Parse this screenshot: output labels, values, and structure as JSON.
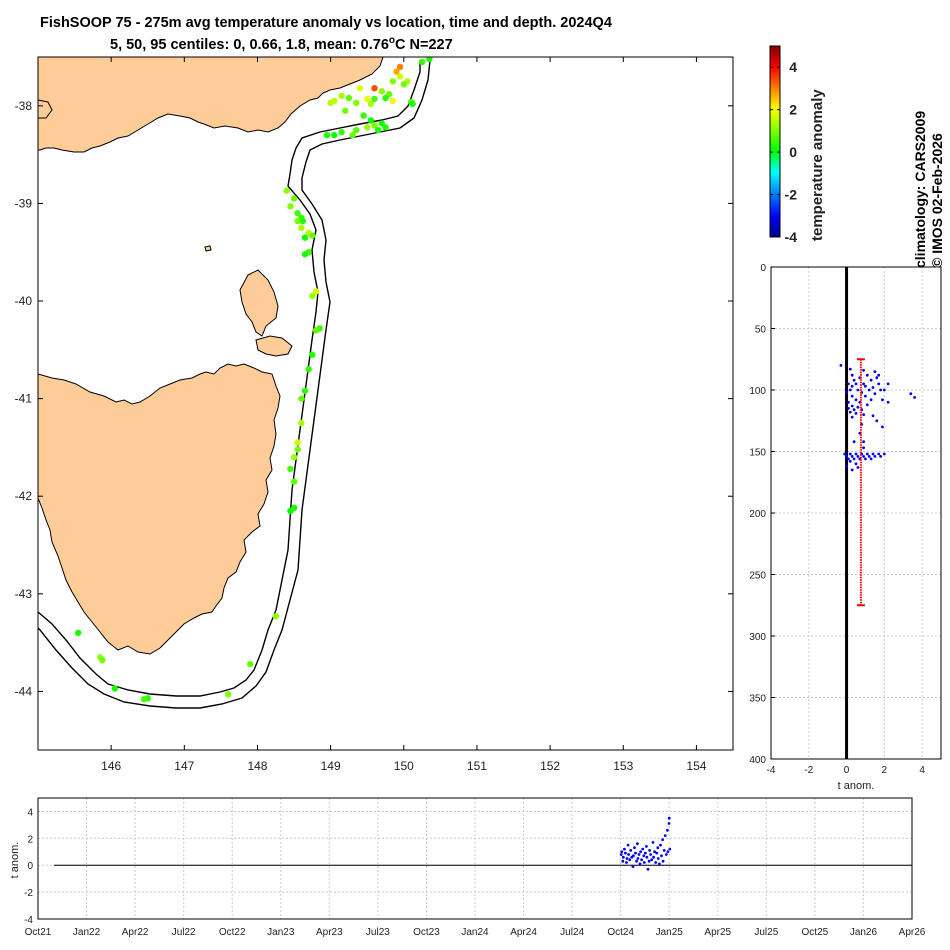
{
  "title_line1": "FishSOOP 75 - 275m avg temperature anomaly vs location, time and depth. 2024Q4",
  "title_line2": "5, 50, 95 centiles: 0, 0.66, 1.8, mean: 0.76",
  "title_unit": "o",
  "title_unit_tail": "C N=227",
  "credit_line1": "climatology: CARS2009",
  "credit_line2": "© IMOS 02-Feb-2026",
  "colors": {
    "land": "#fdcc99",
    "coast": "#000000",
    "depth_points": "#0000ff",
    "error_bar": "#ff0000",
    "zero_line": "#000000",
    "grid": "#cccccc",
    "colormap_jet": [
      "#00008f",
      "#0000ff",
      "#0080ff",
      "#00ffff",
      "#00ff00",
      "#80ff00",
      "#ffff00",
      "#ff8000",
      "#ff0000",
      "#800000"
    ]
  },
  "chart_data": [
    {
      "type": "scatter",
      "name": "map",
      "xlim": [
        145,
        154.5
      ],
      "ylim": [
        -44.6,
        -37.5
      ],
      "xticks": [
        "146",
        "147",
        "148",
        "149",
        "150",
        "151",
        "152",
        "153",
        "154"
      ],
      "yticks": [
        "-38",
        "-39",
        "-40",
        "-41",
        "-42",
        "-43",
        "-44"
      ],
      "colorbar": {
        "label": "temperature anomaly",
        "clim": [
          -4,
          5
        ],
        "ticks": [
          "4",
          "2",
          "0",
          "-2",
          "-4"
        ]
      },
      "points": [
        [
          150.35,
          -37.52,
          0.2
        ],
        [
          150.25,
          -37.55,
          0.4
        ],
        [
          149.95,
          -37.6,
          3.0
        ],
        [
          149.9,
          -37.65,
          2.7
        ],
        [
          149.95,
          -37.7,
          1.6
        ],
        [
          150.05,
          -37.75,
          1.3
        ],
        [
          149.85,
          -37.75,
          1.0
        ],
        [
          150.0,
          -37.78,
          0.9
        ],
        [
          149.6,
          -37.82,
          3.4
        ],
        [
          149.4,
          -37.82,
          1.7
        ],
        [
          149.7,
          -37.85,
          1.1
        ],
        [
          149.8,
          -37.88,
          0.8
        ],
        [
          149.15,
          -37.9,
          1.3
        ],
        [
          149.25,
          -37.92,
          0.7
        ],
        [
          149.5,
          -37.93,
          1.8
        ],
        [
          149.6,
          -37.93,
          0.5
        ],
        [
          149.75,
          -37.92,
          0.3
        ],
        [
          149.85,
          -37.95,
          1.9
        ],
        [
          149.0,
          -37.97,
          1.4
        ],
        [
          149.05,
          -37.95,
          1.5
        ],
        [
          149.35,
          -37.97,
          1.0
        ],
        [
          149.55,
          -37.98,
          1.3
        ],
        [
          150.1,
          -37.96,
          0.6
        ],
        [
          150.12,
          -37.98,
          0.2
        ],
        [
          149.2,
          -38.05,
          0.9
        ],
        [
          149.45,
          -38.1,
          0.4
        ],
        [
          149.55,
          -38.15,
          0.1
        ],
        [
          149.7,
          -38.18,
          0.2
        ],
        [
          149.75,
          -38.22,
          0.3
        ],
        [
          149.6,
          -38.2,
          1.0
        ],
        [
          149.5,
          -38.22,
          1.2
        ],
        [
          149.35,
          -38.25,
          0.7
        ],
        [
          149.15,
          -38.27,
          0.4
        ],
        [
          148.95,
          -38.3,
          0.2
        ],
        [
          149.05,
          -38.3,
          0.0
        ],
        [
          149.3,
          -38.3,
          0.8
        ],
        [
          149.65,
          -38.25,
          0.2
        ],
        [
          148.4,
          -38.87,
          1.1
        ],
        [
          148.5,
          -38.95,
          0.8
        ],
        [
          148.45,
          -39.03,
          1.0
        ],
        [
          148.55,
          -39.1,
          0.5
        ],
        [
          148.6,
          -39.15,
          0.3
        ],
        [
          148.55,
          -39.18,
          0.9
        ],
        [
          148.6,
          -39.25,
          1.3
        ],
        [
          148.7,
          -39.3,
          1.5
        ],
        [
          148.75,
          -39.33,
          0.8
        ],
        [
          148.65,
          -39.35,
          0.1
        ],
        [
          148.62,
          -39.18,
          0.2
        ],
        [
          148.7,
          -39.5,
          0.5
        ],
        [
          148.65,
          -39.52,
          0.2
        ],
        [
          148.8,
          -39.9,
          1.7
        ],
        [
          148.75,
          -39.95,
          1.2
        ],
        [
          148.85,
          -40.28,
          0.5
        ],
        [
          148.8,
          -40.3,
          0.7
        ],
        [
          148.75,
          -40.55,
          0.3
        ],
        [
          148.7,
          -40.7,
          0.4
        ],
        [
          148.65,
          -40.92,
          0.3
        ],
        [
          148.6,
          -41.0,
          0.8
        ],
        [
          148.6,
          -41.25,
          1.3
        ],
        [
          148.55,
          -41.45,
          1.6
        ],
        [
          148.55,
          -41.52,
          0.9
        ],
        [
          148.5,
          -41.6,
          1.2
        ],
        [
          148.45,
          -41.72,
          0.5
        ],
        [
          148.5,
          -41.85,
          0.7
        ],
        [
          148.5,
          -42.12,
          0.2
        ],
        [
          148.45,
          -42.15,
          0.0
        ],
        [
          148.25,
          -43.23,
          1.1
        ],
        [
          147.9,
          -43.72,
          0.8
        ],
        [
          147.6,
          -44.03,
          1.0
        ],
        [
          146.5,
          -44.07,
          0.3
        ],
        [
          146.45,
          -44.08,
          0.6
        ],
        [
          146.05,
          -43.97,
          0.2
        ],
        [
          145.85,
          -43.65,
          1.1
        ],
        [
          145.88,
          -43.68,
          0.9
        ],
        [
          145.55,
          -43.4,
          0.2
        ]
      ]
    },
    {
      "type": "scatter",
      "name": "depth_profile",
      "xlabel": "t anom.",
      "xlim": [
        -4,
        5
      ],
      "ylim": [
        0,
        400
      ],
      "xticks": [
        "-4",
        "-2",
        "0",
        "2",
        "4"
      ],
      "yticks": [
        "0",
        "50",
        "100",
        "150",
        "200",
        "250",
        "300",
        "350",
        "400"
      ],
      "error_bar": {
        "x": 0.76,
        "top": 75,
        "bottom": 275
      },
      "points": [
        [
          -0.3,
          80
        ],
        [
          0.2,
          83
        ],
        [
          0.9,
          84
        ],
        [
          1.5,
          85
        ],
        [
          0.3,
          88
        ],
        [
          1.1,
          88
        ],
        [
          0.7,
          90
        ],
        [
          1.6,
          90
        ],
        [
          0.4,
          92
        ],
        [
          1.3,
          92
        ],
        [
          0.1,
          95
        ],
        [
          0.5,
          95
        ],
        [
          0.9,
          95
        ],
        [
          1.7,
          95
        ],
        [
          2.2,
          95
        ],
        [
          0.3,
          97
        ],
        [
          1.0,
          97
        ],
        [
          1.4,
          98
        ],
        [
          0.2,
          100
        ],
        [
          0.6,
          100
        ],
        [
          1.2,
          100
        ],
        [
          1.8,
          100
        ],
        [
          0.0,
          102
        ],
        [
          0.8,
          102
        ],
        [
          1.5,
          103
        ],
        [
          3.4,
          103
        ],
        [
          0.3,
          105
        ],
        [
          1.0,
          105
        ],
        [
          3.6,
          106
        ],
        [
          0.5,
          108
        ],
        [
          1.3,
          108
        ],
        [
          1.9,
          108
        ],
        [
          0.1,
          110
        ],
        [
          0.7,
          110
        ],
        [
          1.1,
          112
        ],
        [
          0.3,
          113
        ],
        [
          0.6,
          114
        ],
        [
          0.1,
          115
        ],
        [
          0.4,
          116
        ],
        [
          0.8,
          116
        ],
        [
          0.2,
          118
        ],
        [
          0.5,
          119
        ],
        [
          0.9,
          120
        ],
        [
          1.4,
          121
        ],
        [
          0.3,
          122
        ],
        [
          1.6,
          125
        ],
        [
          0.8,
          128
        ],
        [
          1.9,
          130
        ],
        [
          0.7,
          135
        ],
        [
          0.4,
          142
        ],
        [
          0.9,
          142
        ],
        [
          0.9,
          147
        ],
        [
          -0.1,
          152
        ],
        [
          0.2,
          152
        ],
        [
          0.5,
          152
        ],
        [
          0.8,
          152
        ],
        [
          1.1,
          152
        ],
        [
          1.4,
          152
        ],
        [
          1.7,
          152
        ],
        [
          2.0,
          152
        ],
        [
          0.0,
          154
        ],
        [
          0.3,
          154
        ],
        [
          0.6,
          154
        ],
        [
          0.9,
          154
        ],
        [
          1.2,
          154
        ],
        [
          1.5,
          154
        ],
        [
          1.8,
          154
        ],
        [
          0.1,
          156
        ],
        [
          0.4,
          156
        ],
        [
          0.7,
          156
        ],
        [
          1.0,
          156
        ],
        [
          1.3,
          156
        ],
        [
          0.2,
          158
        ],
        [
          0.5,
          160
        ],
        [
          0.0,
          162
        ],
        [
          0.3,
          165
        ],
        [
          0.6,
          163
        ],
        [
          2.2,
          110
        ],
        [
          2.0,
          100
        ],
        [
          1.7,
          88
        ]
      ]
    },
    {
      "type": "scatter",
      "name": "time_series",
      "ylabel": "t anom.",
      "ylim": [
        -4,
        5
      ],
      "yticks": [
        "4",
        "2",
        "0",
        "-2",
        "-4"
      ],
      "xtick_labels": [
        "Oct21",
        "Jan22",
        "Apr22",
        "Jul22",
        "Oct22",
        "Jan23",
        "Apr23",
        "Jul23",
        "Oct23",
        "Jan24",
        "Apr24",
        "Jul24",
        "Oct24",
        "Jan25",
        "Apr25",
        "Jul25",
        "Oct25",
        "Jan26",
        "Apr26"
      ],
      "x_start_month": "Oct21",
      "x_end_month": "Apr26",
      "points": [
        [
          "2024-10-02",
          0.8
        ],
        [
          "2024-10-03",
          1.0
        ],
        [
          "2024-10-05",
          0.3
        ],
        [
          "2024-10-06",
          0.6
        ],
        [
          "2024-10-08",
          1.2
        ],
        [
          "2024-10-10",
          0.9
        ],
        [
          "2024-10-12",
          0.2
        ],
        [
          "2024-10-13",
          0.5
        ],
        [
          "2024-10-15",
          1.5
        ],
        [
          "2024-10-16",
          0.8
        ],
        [
          "2024-10-18",
          0.4
        ],
        [
          "2024-10-20",
          1.1
        ],
        [
          "2024-10-22",
          0.6
        ],
        [
          "2024-10-24",
          -0.1
        ],
        [
          "2024-10-25",
          0.7
        ],
        [
          "2024-10-27",
          1.3
        ],
        [
          "2024-10-29",
          0.9
        ],
        [
          "2024-10-31",
          0.3
        ],
        [
          "2024-11-02",
          1.6
        ],
        [
          "2024-11-03",
          0.5
        ],
        [
          "2024-11-05",
          0.8
        ],
        [
          "2024-11-07",
          0.1
        ],
        [
          "2024-11-08",
          1.0
        ],
        [
          "2024-11-10",
          0.4
        ],
        [
          "2024-11-12",
          1.2
        ],
        [
          "2024-11-14",
          0.7
        ],
        [
          "2024-11-15",
          0.2
        ],
        [
          "2024-11-17",
          0.9
        ],
        [
          "2024-11-19",
          1.4
        ],
        [
          "2024-11-20",
          0.6
        ],
        [
          "2024-11-22",
          -0.3
        ],
        [
          "2024-11-24",
          0.3
        ],
        [
          "2024-11-25",
          1.1
        ],
        [
          "2024-11-27",
          0.8
        ],
        [
          "2024-11-29",
          0.4
        ],
        [
          "2024-12-01",
          1.7
        ],
        [
          "2024-12-02",
          0.6
        ],
        [
          "2024-12-04",
          1.0
        ],
        [
          "2024-12-06",
          0.2
        ],
        [
          "2024-12-08",
          0.9
        ],
        [
          "2024-12-10",
          1.3
        ],
        [
          "2024-12-11",
          0.5
        ],
        [
          "2024-12-13",
          0.1
        ],
        [
          "2024-12-15",
          1.5
        ],
        [
          "2024-12-17",
          0.7
        ],
        [
          "2024-12-19",
          1.9
        ],
        [
          "2024-12-20",
          0.3
        ],
        [
          "2024-12-22",
          1.1
        ],
        [
          "2024-12-24",
          2.2
        ],
        [
          "2024-12-26",
          0.8
        ],
        [
          "2024-12-28",
          2.6
        ],
        [
          "2024-12-29",
          1.0
        ],
        [
          "2024-12-31",
          3.1
        ],
        [
          "2025-01-01",
          3.5
        ],
        [
          "2025-01-02",
          1.2
        ]
      ]
    }
  ]
}
